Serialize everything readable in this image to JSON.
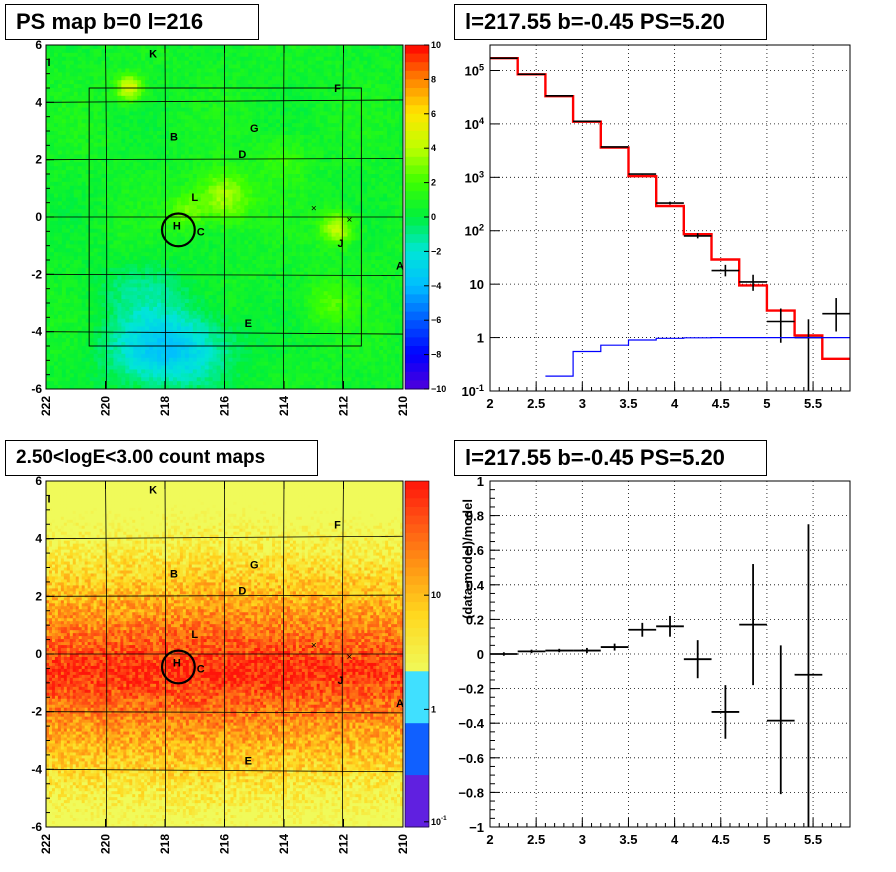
{
  "titles": {
    "top_left": "PS map b=0 l=216",
    "top_right": "l=217.55 b=-0.45 PS=5.20",
    "bottom_left": "2.50<logE<3.00 count maps",
    "bottom_right": "l=217.55 b=-0.45 PS=5.20"
  },
  "chart_data": [
    {
      "type": "heatmap",
      "title": "PS map b=0 l=216",
      "x_ticks": [
        "222",
        "220",
        "218",
        "216",
        "214",
        "212",
        "210"
      ],
      "y_ticks": [
        "6",
        "4",
        "2",
        "0",
        "-2",
        "-4",
        "-6"
      ],
      "xlim": [
        222,
        210
      ],
      "ylim": [
        -6,
        6
      ],
      "colorbar": {
        "min": -10,
        "max": 10,
        "ticks": [
          "10",
          "8",
          "6",
          "4",
          "2",
          "0",
          "−2",
          "−4",
          "−6",
          "−8",
          "−10"
        ]
      },
      "source_labels": [
        {
          "label": "I",
          "l": 221.9,
          "b": 5.4
        },
        {
          "label": "K",
          "l": 218.4,
          "b": 5.7
        },
        {
          "label": "F",
          "l": 212.2,
          "b": 4.5
        },
        {
          "label": "G",
          "l": 215.0,
          "b": 3.1
        },
        {
          "label": "B",
          "l": 217.7,
          "b": 2.8
        },
        {
          "label": "D",
          "l": 215.4,
          "b": 2.2
        },
        {
          "label": "L",
          "l": 217.0,
          "b": 0.7
        },
        {
          "label": "H",
          "l": 217.6,
          "b": -0.3
        },
        {
          "label": "C",
          "l": 216.8,
          "b": -0.5
        },
        {
          "label": "J",
          "l": 212.1,
          "b": -0.9
        },
        {
          "label": "A",
          "l": 210.1,
          "b": -1.7
        },
        {
          "label": "E",
          "l": 215.2,
          "b": -3.7
        }
      ],
      "crosses": [
        {
          "l": 213.0,
          "b": 0.3
        },
        {
          "l": 211.8,
          "b": -0.1
        }
      ],
      "circle": {
        "l": 217.55,
        "b": -0.45,
        "radius_deg": 0.55
      }
    },
    {
      "type": "line",
      "title": "l=217.55 b=-0.45 PS=5.20",
      "xlabel": "",
      "ylabel": "",
      "y_scale": "log",
      "xlim": [
        2,
        5.9
      ],
      "ylim": [
        0.1,
        300000
      ],
      "x_ticks": [
        "2",
        "2.5",
        "3",
        "3.5",
        "4",
        "4.5",
        "5",
        "5.5"
      ],
      "y_ticks": [
        "10^-1",
        "1",
        "10",
        "10^2",
        "10^3",
        "10^4",
        "10^5"
      ],
      "grid": true,
      "series": [
        {
          "color": "#ff0000",
          "style": "step",
          "edges": [
            2.0,
            2.3,
            2.6,
            2.9,
            3.2,
            3.5,
            3.8,
            4.1,
            4.4,
            4.7,
            5.0,
            5.3,
            5.6,
            5.9
          ],
          "values": [
            170000,
            85000,
            33000,
            11000,
            3600,
            1050,
            290,
            86,
            29,
            9.5,
            3.2,
            1.1,
            0.4
          ]
        },
        {
          "color": "#000000",
          "style": "errorbar",
          "points": [
            {
              "x": 2.15,
              "y": 170000,
              "ylo": 169000,
              "yhi": 171000,
              "xerr": 0.15
            },
            {
              "x": 2.45,
              "y": 85000,
              "ylo": 84500,
              "yhi": 85500,
              "xerr": 0.15
            },
            {
              "x": 2.75,
              "y": 33500,
              "ylo": 33200,
              "yhi": 33800,
              "xerr": 0.15
            },
            {
              "x": 3.05,
              "y": 11200,
              "ylo": 11100,
              "yhi": 11300,
              "xerr": 0.15
            },
            {
              "x": 3.35,
              "y": 3700,
              "ylo": 3650,
              "yhi": 3750,
              "xerr": 0.15
            },
            {
              "x": 3.65,
              "y": 1150,
              "ylo": 1120,
              "yhi": 1180,
              "xerr": 0.15
            },
            {
              "x": 3.95,
              "y": 330,
              "ylo": 310,
              "yhi": 350,
              "xerr": 0.15
            },
            {
              "x": 4.25,
              "y": 80,
              "ylo": 72,
              "yhi": 90,
              "xerr": 0.15
            },
            {
              "x": 4.55,
              "y": 18,
              "ylo": 14,
              "yhi": 23,
              "xerr": 0.15
            },
            {
              "x": 4.85,
              "y": 11,
              "ylo": 7.5,
              "yhi": 15,
              "xerr": 0.15
            },
            {
              "x": 5.15,
              "y": 2,
              "ylo": 0.8,
              "yhi": 3.5,
              "xerr": 0.15
            },
            {
              "x": 5.45,
              "y": 1,
              "ylo": 0.1,
              "yhi": 2.2,
              "xerr": 0.15
            },
            {
              "x": 5.75,
              "y": 2.8,
              "ylo": 1.3,
              "yhi": 5.5,
              "xerr": 0.15
            }
          ]
        },
        {
          "color": "#0000ff",
          "style": "step",
          "edges": [
            2.6,
            2.9,
            3.2,
            3.5,
            3.8,
            4.1,
            4.4,
            4.7,
            5.0,
            5.3,
            5.6,
            5.9
          ],
          "values": [
            0.19,
            0.55,
            0.72,
            0.9,
            0.97,
            0.99,
            1.0,
            1.0,
            1.0,
            1.0,
            1.0
          ]
        }
      ]
    },
    {
      "type": "heatmap",
      "title": "2.50<logE<3.00 count maps",
      "x_ticks": [
        "222",
        "220",
        "218",
        "216",
        "214",
        "212",
        "210"
      ],
      "y_ticks": [
        "6",
        "4",
        "2",
        "0",
        "-2",
        "-4",
        "-6"
      ],
      "xlim": [
        222,
        210
      ],
      "ylim": [
        -6,
        6
      ],
      "colorbar": {
        "scale": "log",
        "ticks": [
          "10",
          "1",
          "10^-1"
        ]
      },
      "source_labels": [
        {
          "label": "I",
          "l": 221.9,
          "b": 5.4
        },
        {
          "label": "K",
          "l": 218.4,
          "b": 5.7
        },
        {
          "label": "F",
          "l": 212.2,
          "b": 4.5
        },
        {
          "label": "G",
          "l": 215.0,
          "b": 3.1
        },
        {
          "label": "B",
          "l": 217.7,
          "b": 2.8
        },
        {
          "label": "D",
          "l": 215.4,
          "b": 2.2
        },
        {
          "label": "L",
          "l": 217.0,
          "b": 0.7
        },
        {
          "label": "H",
          "l": 217.6,
          "b": -0.3
        },
        {
          "label": "C",
          "l": 216.8,
          "b": -0.5
        },
        {
          "label": "J",
          "l": 212.1,
          "b": -0.9
        },
        {
          "label": "A",
          "l": 210.1,
          "b": -1.7
        },
        {
          "label": "E",
          "l": 215.2,
          "b": -3.7
        }
      ],
      "crosses": [
        {
          "l": 213.0,
          "b": 0.3
        },
        {
          "l": 211.8,
          "b": -0.1
        }
      ],
      "circle": {
        "l": 217.55,
        "b": -0.45,
        "radius_deg": 0.55
      }
    },
    {
      "type": "scatter",
      "title": "l=217.55 b=-0.45 PS=5.20",
      "xlabel": "",
      "ylabel": "(data-model)/model",
      "xlim": [
        2,
        5.9
      ],
      "ylim": [
        -1,
        1
      ],
      "x_ticks": [
        "2",
        "2.5",
        "3",
        "3.5",
        "4",
        "4.5",
        "5",
        "5.5"
      ],
      "y_ticks": [
        "1",
        "0.8",
        "0.6",
        "0.4",
        "0.2",
        "0",
        "−0.2",
        "−0.4",
        "−0.6",
        "−0.8",
        "−1"
      ],
      "grid": true,
      "points": [
        {
          "x": 2.15,
          "y": 0.0,
          "xerr": 0.15,
          "ylo": -0.01,
          "yhi": 0.01
        },
        {
          "x": 2.45,
          "y": 0.015,
          "xerr": 0.15,
          "ylo": 0.005,
          "yhi": 0.025
        },
        {
          "x": 2.75,
          "y": 0.02,
          "xerr": 0.15,
          "ylo": 0.01,
          "yhi": 0.03
        },
        {
          "x": 3.05,
          "y": 0.02,
          "xerr": 0.15,
          "ylo": 0.005,
          "yhi": 0.035
        },
        {
          "x": 3.35,
          "y": 0.04,
          "xerr": 0.15,
          "ylo": 0.02,
          "yhi": 0.06
        },
        {
          "x": 3.65,
          "y": 0.14,
          "xerr": 0.15,
          "ylo": 0.1,
          "yhi": 0.18
        },
        {
          "x": 3.95,
          "y": 0.16,
          "xerr": 0.15,
          "ylo": 0.1,
          "yhi": 0.22
        },
        {
          "x": 4.25,
          "y": -0.03,
          "xerr": 0.15,
          "ylo": -0.14,
          "yhi": 0.08
        },
        {
          "x": 4.55,
          "y": -0.335,
          "xerr": 0.15,
          "ylo": -0.49,
          "yhi": -0.18
        },
        {
          "x": 4.85,
          "y": 0.17,
          "xerr": 0.15,
          "ylo": -0.18,
          "yhi": 0.52
        },
        {
          "x": 5.15,
          "y": -0.385,
          "xerr": 0.15,
          "ylo": -0.81,
          "yhi": 0.05
        },
        {
          "x": 5.45,
          "y": -0.12,
          "xerr": 0.15,
          "ylo": -1.0,
          "yhi": 0.75
        }
      ]
    }
  ]
}
